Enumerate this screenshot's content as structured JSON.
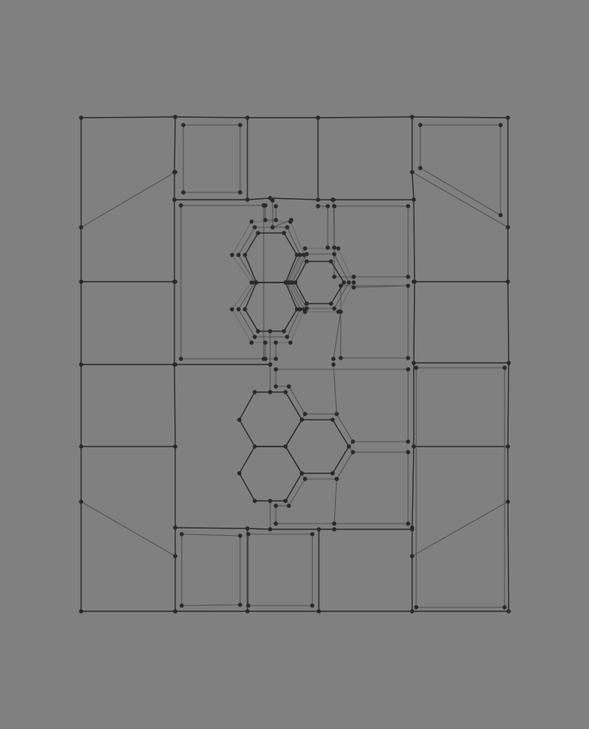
{
  "viewport": {
    "background_color": "#808080",
    "edge_color_dark": "#2f2f2f",
    "edge_color_light": "#555555",
    "vertex_color": "#2a2a2a"
  }
}
